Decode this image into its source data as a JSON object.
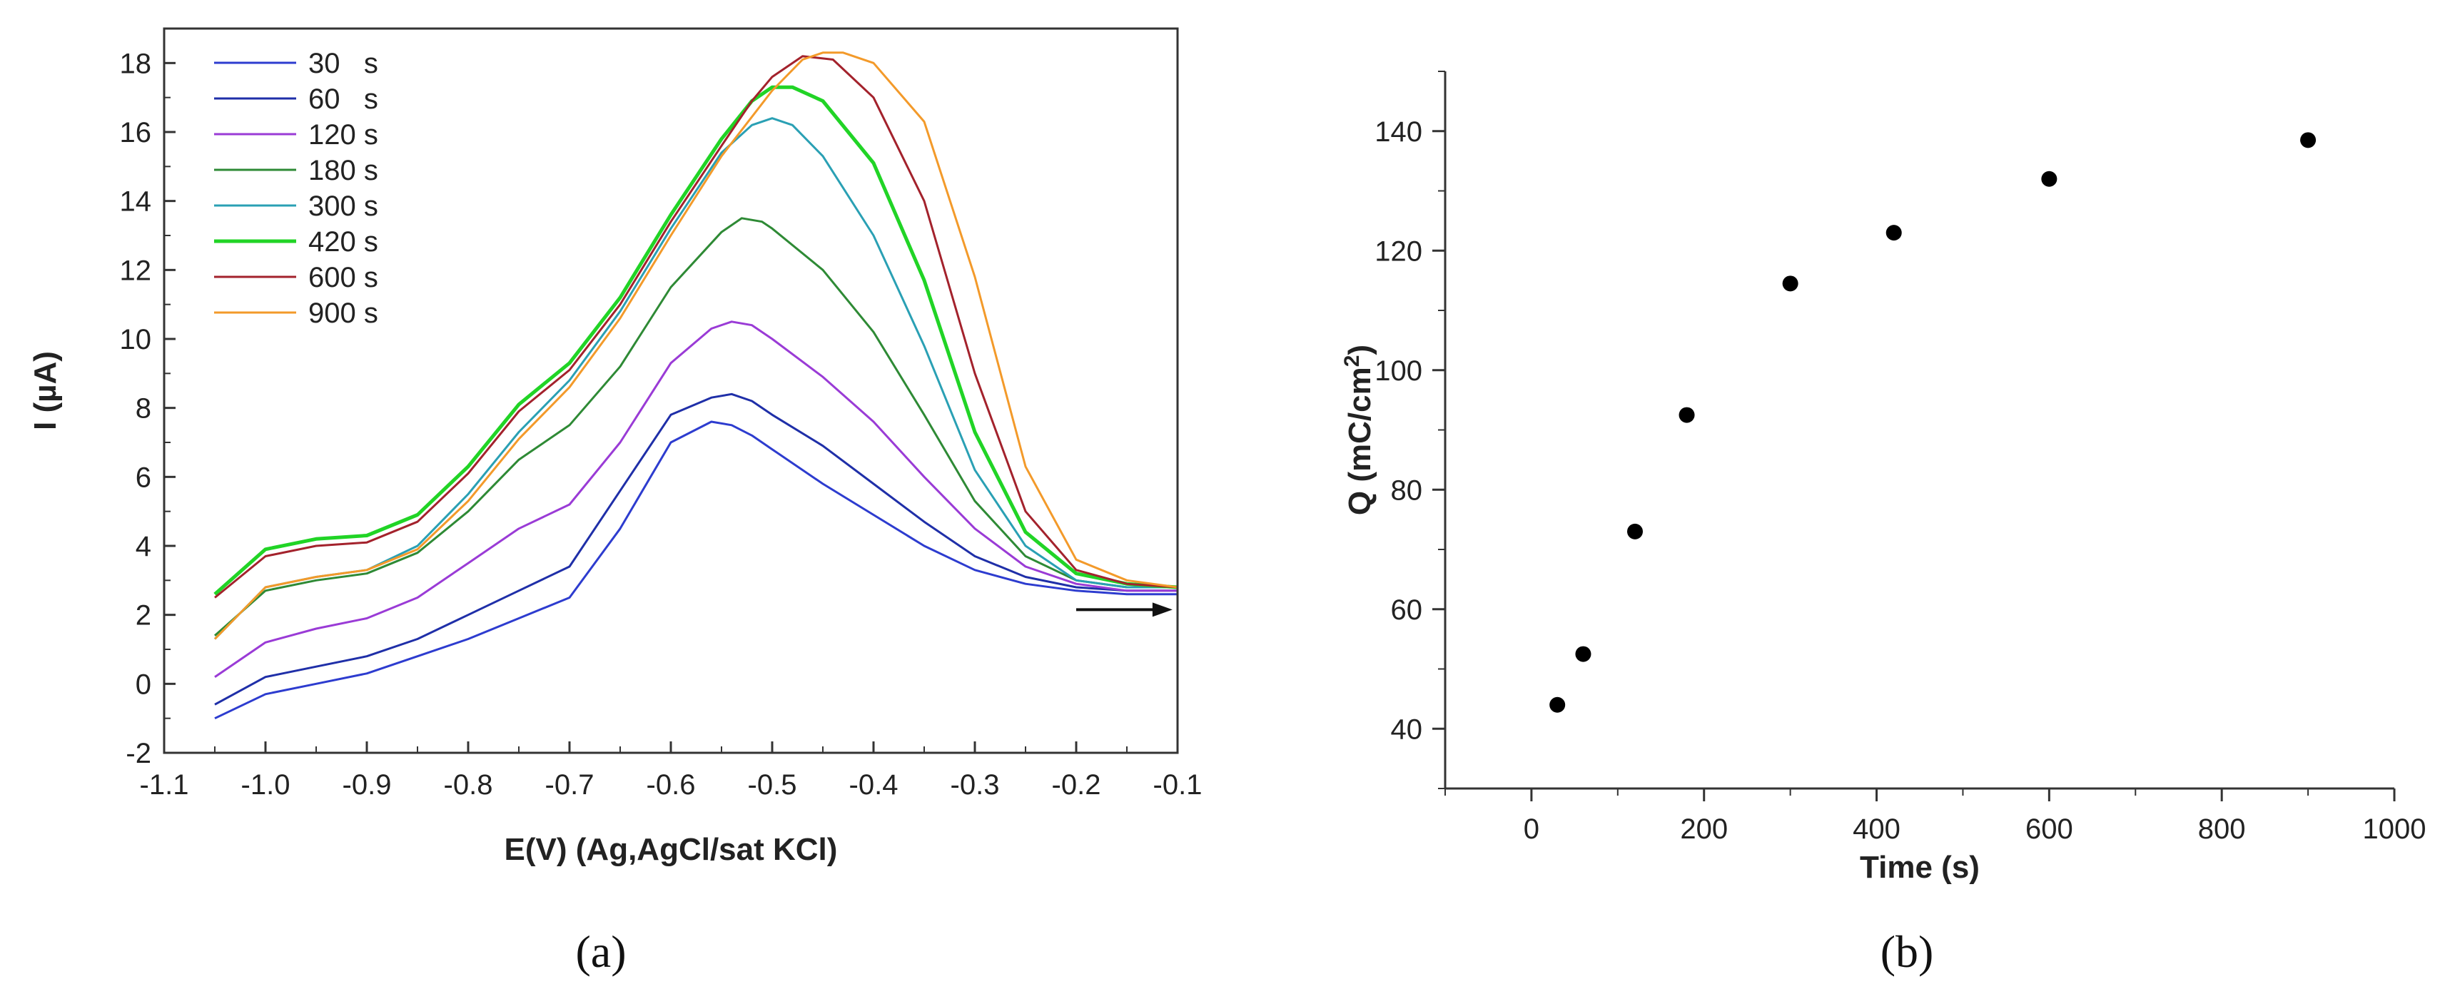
{
  "chart_data": [
    {
      "type": "line",
      "panel_label": "(a)",
      "xlabel": "E(V) (Ag,AgCl/sat KCl)",
      "ylabel": "I (µA)",
      "xlim": [
        -1.1,
        -0.1
      ],
      "ylim": [
        -2,
        19
      ],
      "xticks": [
        -1.1,
        -1.0,
        -0.9,
        -0.8,
        -0.7,
        -0.6,
        -0.5,
        -0.4,
        -0.3,
        -0.2,
        -0.1
      ],
      "xtick_labels": [
        "-1.1",
        "-1.0",
        "-0.9",
        "-0.8",
        "-0.7",
        "-0.6",
        "-0.5",
        "-0.4",
        "-0.3",
        "-0.2",
        "-0.1"
      ],
      "yticks": [
        -2,
        0,
        2,
        4,
        6,
        8,
        10,
        12,
        14,
        16,
        18
      ],
      "ytick_labels": [
        "-2",
        "0",
        "2",
        "4",
        "6",
        "8",
        "10",
        "12",
        "14",
        "16",
        "18"
      ],
      "legend": "top-left",
      "annotation": "arrow pointing right (scan direction)",
      "series": [
        {
          "name": "30   s",
          "color": "#2d3ccf",
          "x": [
            -1.05,
            -1.0,
            -0.95,
            -0.9,
            -0.85,
            -0.8,
            -0.75,
            -0.7,
            -0.65,
            -0.6,
            -0.56,
            -0.54,
            -0.52,
            -0.5,
            -0.45,
            -0.4,
            -0.35,
            -0.3,
            -0.25,
            -0.2,
            -0.15,
            -0.1
          ],
          "y": [
            -1.0,
            -0.3,
            0.0,
            0.3,
            0.8,
            1.3,
            1.9,
            2.5,
            4.5,
            7.0,
            7.6,
            7.5,
            7.2,
            6.8,
            5.8,
            4.9,
            4.0,
            3.3,
            2.9,
            2.7,
            2.6,
            2.6
          ]
        },
        {
          "name": "60   s",
          "color": "#1f2fa8",
          "x": [
            -1.05,
            -1.0,
            -0.95,
            -0.9,
            -0.85,
            -0.8,
            -0.75,
            -0.7,
            -0.65,
            -0.6,
            -0.56,
            -0.54,
            -0.52,
            -0.5,
            -0.45,
            -0.4,
            -0.35,
            -0.3,
            -0.25,
            -0.2,
            -0.15,
            -0.1
          ],
          "y": [
            -0.6,
            0.2,
            0.5,
            0.8,
            1.3,
            2.0,
            2.7,
            3.4,
            5.6,
            7.8,
            8.3,
            8.4,
            8.2,
            7.8,
            6.9,
            5.8,
            4.7,
            3.7,
            3.1,
            2.8,
            2.7,
            2.7
          ]
        },
        {
          "name": "120 s",
          "color": "#9a3bd6",
          "x": [
            -1.05,
            -1.0,
            -0.95,
            -0.9,
            -0.85,
            -0.8,
            -0.75,
            -0.7,
            -0.65,
            -0.6,
            -0.56,
            -0.54,
            -0.52,
            -0.5,
            -0.45,
            -0.4,
            -0.35,
            -0.3,
            -0.25,
            -0.2,
            -0.15,
            -0.1
          ],
          "y": [
            0.2,
            1.2,
            1.6,
            1.9,
            2.5,
            3.5,
            4.5,
            5.2,
            7.0,
            9.3,
            10.3,
            10.5,
            10.4,
            10.0,
            8.9,
            7.6,
            6.0,
            4.5,
            3.4,
            2.9,
            2.7,
            2.7
          ]
        },
        {
          "name": "180 s",
          "color": "#2e8a35",
          "x": [
            -1.05,
            -1.0,
            -0.95,
            -0.9,
            -0.85,
            -0.8,
            -0.75,
            -0.7,
            -0.65,
            -0.6,
            -0.55,
            -0.53,
            -0.51,
            -0.5,
            -0.45,
            -0.4,
            -0.35,
            -0.3,
            -0.25,
            -0.2,
            -0.15,
            -0.1
          ],
          "y": [
            1.4,
            2.7,
            3.0,
            3.2,
            3.8,
            5.0,
            6.5,
            7.5,
            9.2,
            11.5,
            13.1,
            13.5,
            13.4,
            13.2,
            12.0,
            10.2,
            7.8,
            5.3,
            3.7,
            3.0,
            2.8,
            2.8
          ]
        },
        {
          "name": "300 s",
          "color": "#2aa0b4",
          "x": [
            -1.05,
            -1.0,
            -0.95,
            -0.9,
            -0.85,
            -0.8,
            -0.75,
            -0.7,
            -0.65,
            -0.6,
            -0.55,
            -0.52,
            -0.5,
            -0.48,
            -0.45,
            -0.4,
            -0.35,
            -0.3,
            -0.25,
            -0.2,
            -0.15,
            -0.1
          ],
          "y": [
            1.3,
            2.8,
            3.1,
            3.3,
            4.0,
            5.5,
            7.3,
            8.8,
            10.8,
            13.2,
            15.4,
            16.2,
            16.4,
            16.2,
            15.3,
            13.0,
            9.8,
            6.2,
            4.0,
            3.0,
            2.8,
            2.8
          ]
        },
        {
          "name": "420 s",
          "color": "#21d426",
          "x": [
            -1.05,
            -1.0,
            -0.95,
            -0.9,
            -0.85,
            -0.8,
            -0.75,
            -0.7,
            -0.65,
            -0.6,
            -0.55,
            -0.52,
            -0.5,
            -0.48,
            -0.45,
            -0.4,
            -0.35,
            -0.3,
            -0.25,
            -0.2,
            -0.15,
            -0.1
          ],
          "y": [
            2.6,
            3.9,
            4.2,
            4.3,
            4.9,
            6.3,
            8.1,
            9.3,
            11.2,
            13.6,
            15.8,
            16.9,
            17.3,
            17.3,
            16.9,
            15.1,
            11.7,
            7.3,
            4.4,
            3.2,
            2.9,
            2.8
          ]
        },
        {
          "name": "600 s",
          "color": "#a3222c",
          "x": [
            -1.05,
            -1.0,
            -0.95,
            -0.9,
            -0.85,
            -0.8,
            -0.75,
            -0.7,
            -0.65,
            -0.6,
            -0.55,
            -0.52,
            -0.5,
            -0.47,
            -0.44,
            -0.4,
            -0.35,
            -0.3,
            -0.25,
            -0.2,
            -0.15,
            -0.1
          ],
          "y": [
            2.5,
            3.7,
            4.0,
            4.1,
            4.7,
            6.1,
            7.9,
            9.1,
            11.0,
            13.4,
            15.6,
            16.9,
            17.6,
            18.2,
            18.1,
            17.0,
            14.0,
            9.0,
            5.0,
            3.3,
            2.9,
            2.8
          ]
        },
        {
          "name": "900 s",
          "color": "#f39a2a",
          "x": [
            -1.05,
            -1.0,
            -0.95,
            -0.9,
            -0.85,
            -0.8,
            -0.75,
            -0.7,
            -0.65,
            -0.6,
            -0.55,
            -0.5,
            -0.47,
            -0.45,
            -0.43,
            -0.4,
            -0.35,
            -0.3,
            -0.25,
            -0.2,
            -0.15,
            -0.1
          ],
          "y": [
            1.3,
            2.8,
            3.1,
            3.3,
            3.9,
            5.3,
            7.1,
            8.6,
            10.6,
            13.0,
            15.3,
            17.2,
            18.1,
            18.3,
            18.3,
            18.0,
            16.3,
            11.8,
            6.3,
            3.6,
            3.0,
            2.8
          ]
        }
      ]
    },
    {
      "type": "scatter",
      "panel_label": "(b)",
      "xlabel": "Time (s)",
      "ylabel": "Q (mC/cm",
      "ylabel_superscript": "2",
      "ylabel_suffix": ")",
      "xlim": [
        -100,
        1000
      ],
      "ylim": [
        30,
        150
      ],
      "xticks": [
        0,
        200,
        400,
        600,
        800,
        1000
      ],
      "xtick_labels": [
        "0",
        "200",
        "400",
        "600",
        "800",
        "1000"
      ],
      "yticks": [
        40,
        60,
        80,
        100,
        120,
        140
      ],
      "ytick_labels": [
        "40",
        "60",
        "80",
        "100",
        "120",
        "140"
      ],
      "marker_color": "#000000",
      "points": {
        "x": [
          30,
          60,
          120,
          180,
          300,
          420,
          600,
          900
        ],
        "y": [
          44,
          52.5,
          73,
          92.5,
          114.5,
          123,
          132,
          138.5
        ]
      }
    }
  ]
}
